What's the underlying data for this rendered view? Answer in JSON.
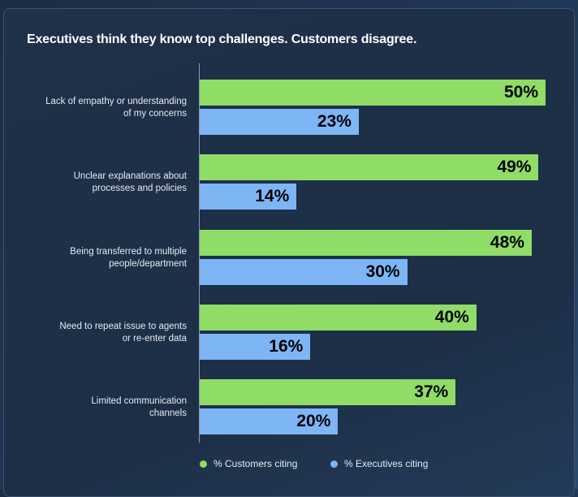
{
  "chart_data": {
    "type": "bar",
    "orientation": "horizontal",
    "title": "Executives think they know top challenges. Customers disagree.",
    "categories": [
      "Lack of empathy or understanding of my concerns",
      "Unclear explanations about processes and policies",
      "Being transferred to multiple people/department",
      "Need to repeat issue to agents or re-enter data",
      "Limited communication channels"
    ],
    "category_lines": [
      [
        "Lack of empathy or understanding",
        "of my concerns"
      ],
      [
        "Unclear explanations about",
        "processes and policies"
      ],
      [
        "Being transferred to multiple",
        "people/department"
      ],
      [
        "Need to repeat issue to agents",
        "or re-enter data"
      ],
      [
        "Limited communication",
        "channels"
      ]
    ],
    "series": [
      {
        "name": "% Customers citing",
        "color": "#8fdc66",
        "values": [
          50,
          49,
          48,
          40,
          37
        ],
        "labels": [
          "50%",
          "49%",
          "48%",
          "40%",
          "37%"
        ]
      },
      {
        "name": "% Executives citing",
        "color": "#7db5f5",
        "values": [
          23,
          14,
          30,
          16,
          20
        ],
        "labels": [
          "23%",
          "14%",
          "30%",
          "16%",
          "20%"
        ]
      }
    ],
    "xlim": [
      0,
      50
    ],
    "legend": "bottom",
    "grid": false
  }
}
